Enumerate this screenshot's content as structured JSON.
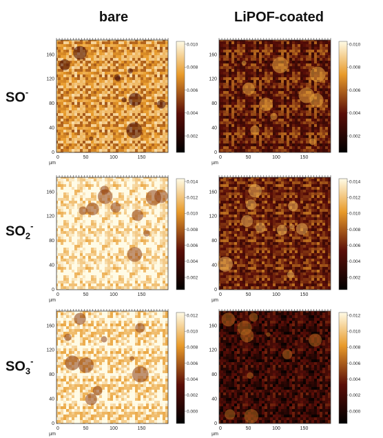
{
  "columns": [
    "bare",
    "LiPOF-coated"
  ],
  "rows": [
    {
      "base": "SO",
      "sub": "",
      "sup": "-"
    },
    {
      "base": "SO",
      "sub": "2",
      "sup": "-"
    },
    {
      "base": "SO",
      "sub": "3",
      "sup": "-"
    }
  ],
  "axis_unit": "µm",
  "x_ticks": [
    "0",
    "50",
    "100",
    "150"
  ],
  "y_ticks": [
    "0",
    "40",
    "80",
    "120",
    "160"
  ],
  "colors": {
    "bright": "#fffbe6",
    "mid": "#e89a2a",
    "dark": "#5a0e08",
    "black": "#000000"
  },
  "panels": [
    {
      "row": 0,
      "col": 0,
      "colorbar_ticks": [
        "0.010",
        "0.008",
        "0.006",
        "0.004",
        "0.002"
      ],
      "colorbar_max": 0.01,
      "intensity": 0.72
    },
    {
      "row": 0,
      "col": 1,
      "colorbar_ticks": [
        "0.010",
        "0.008",
        "0.006",
        "0.004",
        "0.002"
      ],
      "colorbar_max": 0.01,
      "intensity": 0.38
    },
    {
      "row": 1,
      "col": 0,
      "colorbar_ticks": [
        "0.014",
        "0.012",
        "0.010",
        "0.008",
        "0.006",
        "0.004",
        "0.002"
      ],
      "colorbar_max": 0.014,
      "intensity": 0.93
    },
    {
      "row": 1,
      "col": 1,
      "colorbar_ticks": [
        "0.014",
        "0.012",
        "0.010",
        "0.008",
        "0.006",
        "0.004",
        "0.002"
      ],
      "colorbar_max": 0.014,
      "intensity": 0.42
    },
    {
      "row": 2,
      "col": 0,
      "colorbar_ticks": [
        "0.012",
        "0.010",
        "0.008",
        "0.006",
        "0.004",
        "0.002",
        "0.000"
      ],
      "colorbar_max": 0.012,
      "intensity": 0.92
    },
    {
      "row": 2,
      "col": 1,
      "colorbar_ticks": [
        "0.012",
        "0.010",
        "0.008",
        "0.006",
        "0.004",
        "0.002",
        "0.000"
      ],
      "colorbar_max": 0.012,
      "intensity": 0.22
    }
  ]
}
